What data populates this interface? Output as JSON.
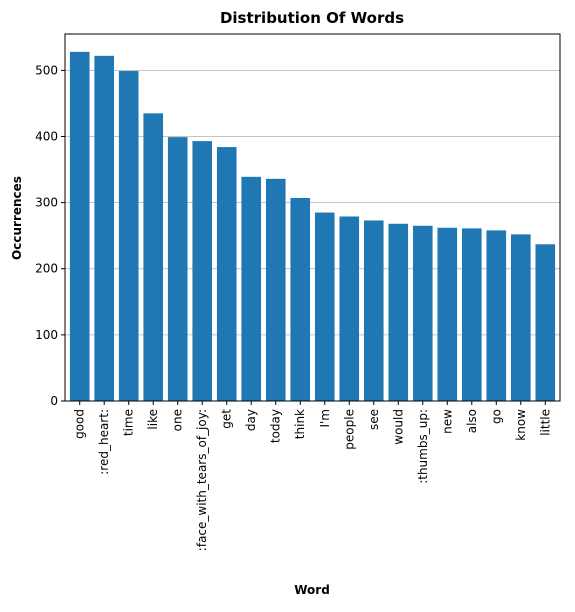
{
  "chart_data": {
    "type": "bar",
    "title": "Distribution Of Words",
    "xlabel": "Word",
    "ylabel": "Occurrences",
    "categories": [
      "good",
      ":red_heart:",
      "time",
      "like",
      "one",
      ":face_with_tears_of_joy:",
      "get",
      "day",
      "today",
      "think",
      "I'm",
      "people",
      "see",
      "would",
      ":thumbs_up:",
      "new",
      "also",
      "go",
      "know",
      "little"
    ],
    "values": [
      528,
      522,
      499,
      435,
      399,
      393,
      384,
      339,
      336,
      307,
      285,
      279,
      273,
      268,
      265,
      262,
      261,
      258,
      252,
      237
    ],
    "ylim": [
      0,
      555
    ],
    "yticks": [
      0,
      100,
      200,
      300,
      400,
      500
    ],
    "grid": "y",
    "bar_color": "#1f77b4",
    "grid_color": "#b0b0b0"
  }
}
